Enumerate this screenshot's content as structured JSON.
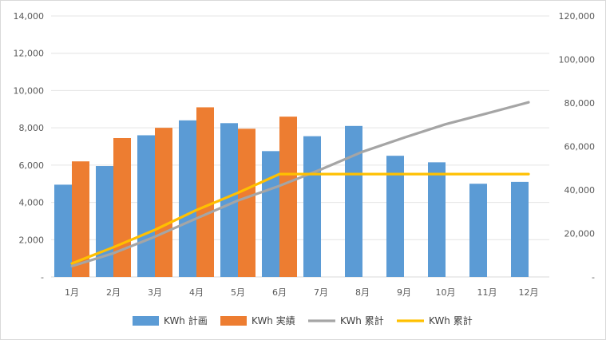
{
  "chart_data": {
    "type": "bar",
    "categories": [
      "1月",
      "2月",
      "3月",
      "4月",
      "5月",
      "6月",
      "7月",
      "8月",
      "9月",
      "10月",
      "11月",
      "12月"
    ],
    "series": [
      {
        "name": "KWh 計画",
        "kind": "bar",
        "axis": "left",
        "color": "#5b9bd5",
        "values": [
          4950,
          5950,
          7600,
          8400,
          8250,
          6750,
          7550,
          8100,
          6500,
          6150,
          5000,
          5100
        ]
      },
      {
        "name": "KWh 実績",
        "kind": "bar",
        "axis": "left",
        "color": "#ed7d31",
        "values": [
          6200,
          7450,
          8000,
          9100,
          7950,
          8600,
          null,
          null,
          null,
          null,
          null,
          null
        ]
      },
      {
        "name": "KWh 累計",
        "kind": "line",
        "axis": "right",
        "color": "#a5a5a5",
        "values": [
          4950,
          10900,
          18500,
          26900,
          35150,
          41900,
          49450,
          57550,
          64050,
          70200,
          75200,
          80300
        ]
      },
      {
        "name": "KWh 累計",
        "kind": "line",
        "axis": "right",
        "color": "#ffc000",
        "values": [
          6200,
          13650,
          21650,
          30750,
          38700,
          47300,
          47300,
          47300,
          47300,
          47300,
          47300,
          47300
        ]
      }
    ],
    "left_axis": {
      "min": 0,
      "max": 14000,
      "step": 2000,
      "tick_labels": [
        "-",
        "2,000",
        "4,000",
        "6,000",
        "8,000",
        "10,000",
        "12,000",
        "14,000"
      ]
    },
    "right_axis": {
      "min": 0,
      "max": 120000,
      "step": 20000,
      "tick_labels": [
        "-",
        "20,000",
        "40,000",
        "60,000",
        "80,000",
        "100,000",
        "120,000"
      ]
    },
    "grid": true,
    "legend": "bottom"
  }
}
